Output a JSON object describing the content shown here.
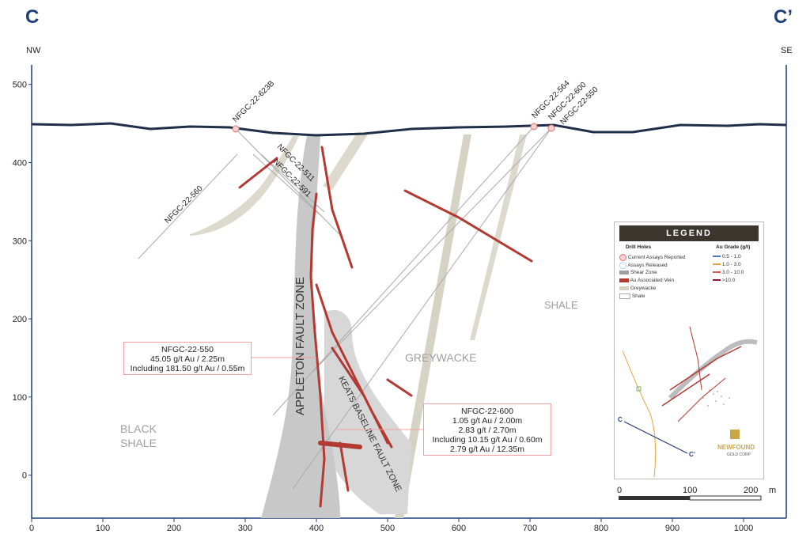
{
  "section": {
    "start_label": "C",
    "end_label": "C’",
    "start_direction": "NW",
    "end_direction": "SE"
  },
  "axes": {
    "x_ticks": [
      "0",
      "100",
      "200",
      "300",
      "400",
      "500",
      "600",
      "700",
      "800",
      "900",
      "1000"
    ],
    "y_ticks": [
      "500",
      "400",
      "300",
      "200",
      "100",
      "0"
    ]
  },
  "units": {
    "x_range": [
      0,
      1060
    ],
    "y_range": [
      -55,
      525
    ]
  },
  "drill_holes": [
    {
      "name": "NFGC-22-623B"
    },
    {
      "name": "NFGC-22-511"
    },
    {
      "name": "NFGC-22-591"
    },
    {
      "name": "NFGC-22-560"
    },
    {
      "name": "NFGC-22-564"
    },
    {
      "name": "NFGC-22-600"
    },
    {
      "name": "NFGC-22-550"
    }
  ],
  "labels": {
    "appleton": "APPLETON FAULT ZONE",
    "keats": "KEATS BASELINE FAULT ZONE",
    "greywacke": "GREYWACKE",
    "shale": "SHALE",
    "black_shale_1": "BLACK",
    "black_shale_2": "SHALE"
  },
  "callouts": {
    "c550": [
      "NFGC-22-550",
      "45.05 g/t Au / 2.25m",
      "Including 181.50 g/t Au / 0.55m"
    ],
    "c600": [
      "NFGC-22-600",
      "1.05 g/t Au / 2.00m",
      "2.83 g/t / 2.70m",
      "Including 10.15 g/t Au / 0.60m",
      "2.79 g/t Au / 12.35m"
    ]
  },
  "legend": {
    "title": "LEGEND",
    "drill_holes_head": "Drill Holes",
    "grade_head": "Au Grade (g/t)",
    "items": [
      {
        "label": "Current Assays Reported",
        "color": "#e57373"
      },
      {
        "label": "Assays Released",
        "color": "#a8d8ea"
      },
      {
        "label": "Shear Zone",
        "color": "#9e9e9e"
      },
      {
        "label": "Au Associated Vein",
        "color": "#b23a33"
      },
      {
        "label": "Greywacke",
        "color": "#d6d2c4"
      },
      {
        "label": "Shale",
        "color": "#ffffff"
      }
    ],
    "grades": [
      {
        "label": "0.5 - 1.0",
        "color": "#4a7bc4"
      },
      {
        "label": "1.0 - 3.0",
        "color": "#e8a33a"
      },
      {
        "label": "3.0 - 10.0",
        "color": "#d9534f"
      },
      {
        "label": ">10.0",
        "color": "#8b1a3a"
      }
    ],
    "map_c_start": "C",
    "map_c_end": "C’",
    "logo_line1": "NEWFOUND",
    "logo_line2": "GOLD CORP"
  },
  "scale_bar": {
    "labels": [
      "0",
      "100",
      "200"
    ],
    "unit": "m"
  },
  "colors": {
    "accent": "#1f3f7a",
    "vein": "#b23a33",
    "shear": "#c8c8c8",
    "greywacke": "#ddd9cc",
    "topography": "#1f2f4a",
    "hole_line": "#aaaaaa"
  }
}
